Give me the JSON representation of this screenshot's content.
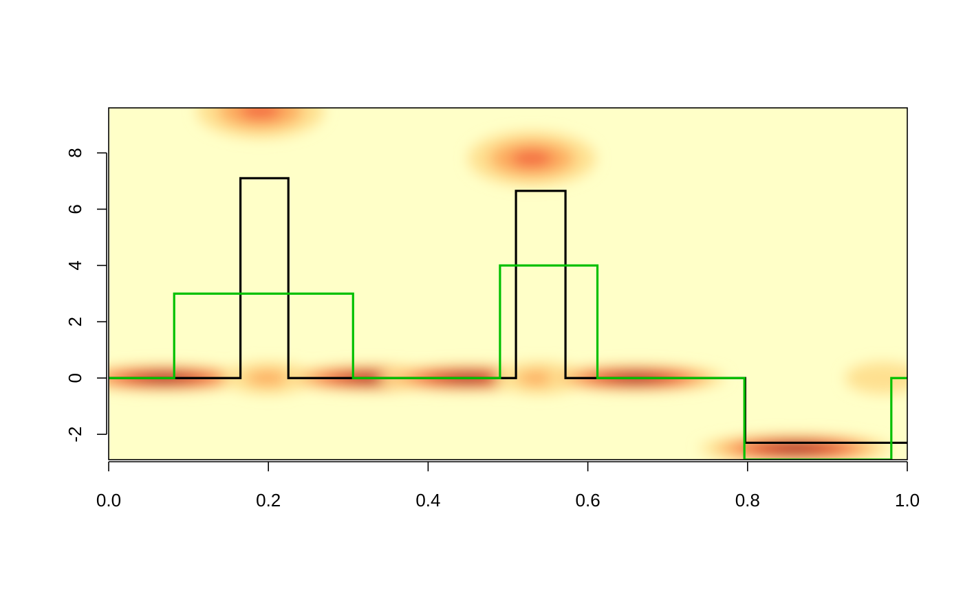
{
  "chart_data": {
    "type": "heatmap",
    "title": "",
    "xlabel": "",
    "ylabel": "",
    "xlim": [
      0,
      1
    ],
    "ylim": [
      -2.9,
      9.6
    ],
    "x_ticks": [
      0.0,
      0.2,
      0.4,
      0.6,
      0.8,
      1.0
    ],
    "x_tick_labels": [
      "0.0",
      "0.2",
      "0.4",
      "0.6",
      "0.8",
      "1.0"
    ],
    "y_ticks": [
      -2,
      0,
      2,
      4,
      6,
      8
    ],
    "y_tick_labels": [
      "-2",
      "0",
      "2",
      "4",
      "6",
      "8"
    ],
    "grid": false,
    "legend": "none",
    "background_colormap": [
      "#ffffc8",
      "#fee090",
      "#fdae61",
      "#f46d43",
      "#d7301f",
      "#b2001f",
      "#800026"
    ],
    "density_blobs": [
      {
        "x": 0.07,
        "y": 0.0,
        "sx": 0.07,
        "sy": 0.28,
        "intensity": 1.0
      },
      {
        "x": 0.2,
        "y": 0.0,
        "sx": 0.035,
        "sy": 0.35,
        "intensity": 0.35
      },
      {
        "x": 0.33,
        "y": 0.0,
        "sx": 0.07,
        "sy": 0.28,
        "intensity": 1.0
      },
      {
        "x": 0.45,
        "y": 0.0,
        "sx": 0.07,
        "sy": 0.28,
        "intensity": 1.0
      },
      {
        "x": 0.54,
        "y": 0.0,
        "sx": 0.035,
        "sy": 0.35,
        "intensity": 0.35
      },
      {
        "x": 0.66,
        "y": 0.0,
        "sx": 0.07,
        "sy": 0.28,
        "intensity": 1.0
      },
      {
        "x": 0.86,
        "y": -2.5,
        "sx": 0.075,
        "sy": 0.3,
        "intensity": 0.95
      },
      {
        "x": 0.19,
        "y": 9.5,
        "sx": 0.05,
        "sy": 0.6,
        "intensity": 0.45
      },
      {
        "x": 0.53,
        "y": 7.8,
        "sx": 0.05,
        "sy": 0.6,
        "intensity": 0.45
      },
      {
        "x": 0.97,
        "y": 0.0,
        "sx": 0.03,
        "sy": 0.35,
        "intensity": 0.2
      }
    ],
    "series": [
      {
        "color": "#000000",
        "step": true,
        "x": [
          0.0,
          0.165,
          0.165,
          0.225,
          0.225,
          0.51,
          0.51,
          0.572,
          0.572,
          0.797,
          0.797,
          1.0
        ],
        "y": [
          0.0,
          0.0,
          7.1,
          7.1,
          0.0,
          0.0,
          6.65,
          6.65,
          0.0,
          0.0,
          -2.3,
          -2.3
        ]
      },
      {
        "color": "#00c000",
        "step": true,
        "x": [
          0.0,
          0.082,
          0.082,
          0.306,
          0.306,
          0.49,
          0.49,
          0.612,
          0.612,
          0.796,
          0.796,
          0.98,
          0.98,
          1.0
        ],
        "y": [
          0.0,
          0.0,
          3.0,
          3.0,
          0.0,
          0.0,
          4.0,
          4.0,
          0.0,
          0.0,
          -2.9,
          -2.9,
          0.0,
          0.0
        ]
      }
    ]
  }
}
